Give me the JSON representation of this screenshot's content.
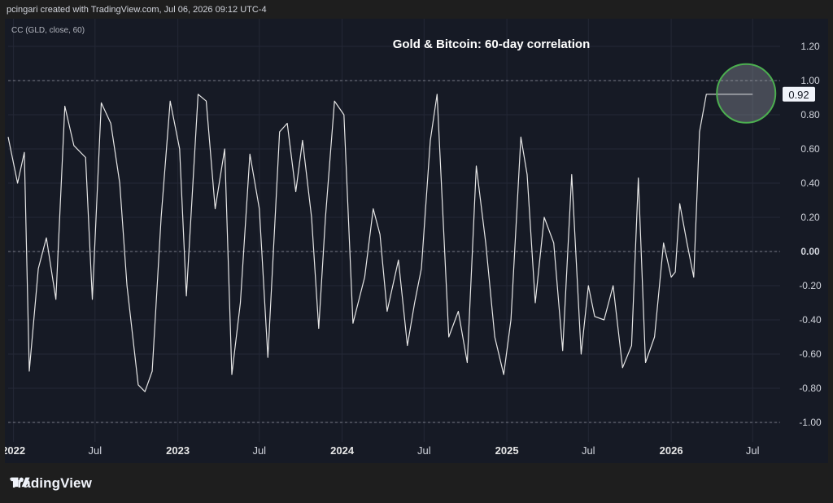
{
  "header": {
    "credit": "pcingari created with TradingView.com, Jul 06, 2026 09:12 UTC-4"
  },
  "indicator_label": "CC (GLD, close, 60)",
  "brand": {
    "name": "TradingView"
  },
  "colors": {
    "background": "#1e1e1e",
    "panel": "#161a25",
    "line": "#e6e6e6",
    "highlight": "#4caf50",
    "grid": "#2a2e39",
    "text": "#d1d4dc"
  },
  "chart_data": {
    "type": "line",
    "title": "Gold & Bitcoin: 60-day correlation",
    "xlabel": "",
    "ylabel": "",
    "ylim": [
      -1.2,
      1.2
    ],
    "x_range": [
      "2021-12-20",
      "2026-08-31"
    ],
    "y_ticks": [
      "1.20",
      "1.00",
      "0.80",
      "0.60",
      "0.40",
      "0.20",
      "0.00",
      "-0.20",
      "-0.40",
      "-0.60",
      "-0.80",
      "-1.00"
    ],
    "x_ticks": [
      {
        "label": "2022",
        "date": "2022-01-01",
        "bold": true
      },
      {
        "label": "Jul",
        "date": "2022-07-01",
        "bold": false
      },
      {
        "label": "2023",
        "date": "2023-01-01",
        "bold": true
      },
      {
        "label": "Jul",
        "date": "2023-07-01",
        "bold": false
      },
      {
        "label": "2024",
        "date": "2024-01-01",
        "bold": true
      },
      {
        "label": "Jul",
        "date": "2024-07-01",
        "bold": false
      },
      {
        "label": "2025",
        "date": "2025-01-01",
        "bold": true
      },
      {
        "label": "Jul",
        "date": "2025-07-01",
        "bold": false
      },
      {
        "label": "2026",
        "date": "2026-01-01",
        "bold": true
      },
      {
        "label": "Jul",
        "date": "2026-07-01",
        "bold": false
      }
    ],
    "reference_lines": [
      1.0,
      0.0,
      -1.0
    ],
    "last_value": 0.92,
    "last_value_label": "0.92",
    "highlight_date": "2026-07-01",
    "series": [
      {
        "x": [
          "2021-12-20",
          "2022-01-10",
          "2022-01-25",
          "2022-02-05",
          "2022-02-25",
          "2022-03-15",
          "2022-04-05",
          "2022-04-25",
          "2022-05-15",
          "2022-06-10",
          "2022-06-25",
          "2022-07-15",
          "2022-08-05",
          "2022-08-25",
          "2022-09-10",
          "2022-10-05",
          "2022-10-20",
          "2022-11-05",
          "2022-11-25",
          "2022-12-15",
          "2023-01-05",
          "2023-01-20",
          "2023-02-15",
          "2023-03-05",
          "2023-03-25",
          "2023-04-15",
          "2023-05-01",
          "2023-05-20",
          "2023-06-10",
          "2023-07-01",
          "2023-07-20",
          "2023-08-15",
          "2023-09-01",
          "2023-09-20",
          "2023-10-05",
          "2023-10-25",
          "2023-11-10",
          "2023-11-25",
          "2023-12-15",
          "2024-01-05",
          "2024-01-25",
          "2024-02-20",
          "2024-03-10",
          "2024-03-25",
          "2024-04-10",
          "2024-05-05",
          "2024-05-25",
          "2024-06-10",
          "2024-06-25",
          "2024-07-15",
          "2024-07-30",
          "2024-08-25",
          "2024-09-15",
          "2024-10-05",
          "2024-10-25",
          "2024-11-15",
          "2024-12-05",
          "2024-12-25",
          "2025-01-10",
          "2025-02-01",
          "2025-02-15",
          "2025-03-05",
          "2025-03-25",
          "2025-04-15",
          "2025-05-05",
          "2025-05-25",
          "2025-06-15",
          "2025-07-01",
          "2025-07-15",
          "2025-08-05",
          "2025-08-25",
          "2025-09-15",
          "2025-10-05",
          "2025-10-20",
          "2025-11-05",
          "2025-11-25",
          "2025-12-15",
          "2026-01-01",
          "2026-01-10",
          "2026-01-20",
          "2026-02-05",
          "2026-02-20",
          "2026-03-05",
          "2026-03-20",
          "2026-04-05",
          "2026-04-20",
          "2026-05-01",
          "2026-05-10",
          "2026-05-20",
          "2026-06-01",
          "2026-06-15",
          "2026-07-01"
        ],
        "y": [
          0.67,
          0.4,
          0.58,
          -0.7,
          -0.1,
          0.08,
          -0.28,
          0.85,
          0.62,
          0.55,
          -0.28,
          0.87,
          0.75,
          0.4,
          -0.2,
          -0.78,
          -0.82,
          -0.7,
          0.2,
          0.88,
          0.6,
          -0.26,
          0.92,
          0.88,
          0.25,
          0.6,
          -0.72,
          -0.3,
          0.57,
          0.25,
          -0.62,
          0.7,
          0.75,
          0.35,
          0.65,
          0.2,
          -0.45,
          0.2,
          0.88,
          0.8,
          -0.42,
          -0.15,
          0.25,
          0.1,
          -0.35,
          -0.05,
          -0.55,
          -0.3,
          -0.1,
          0.65,
          0.92,
          -0.5,
          -0.35,
          -0.65,
          0.5,
          0.05,
          -0.5,
          -0.72,
          -0.4,
          0.67,
          0.45,
          -0.3,
          0.2,
          0.05,
          -0.58,
          0.45,
          -0.6,
          -0.2,
          -0.38,
          -0.4,
          -0.2,
          -0.68,
          -0.55,
          0.43,
          -0.65,
          -0.5,
          0.05,
          -0.15,
          -0.12,
          0.28,
          0.05,
          -0.15,
          0.7,
          0.92,
          0.92,
          0.92,
          0.92,
          0.92,
          0.92,
          0.92,
          0.92,
          0.92
        ]
      }
    ]
  }
}
